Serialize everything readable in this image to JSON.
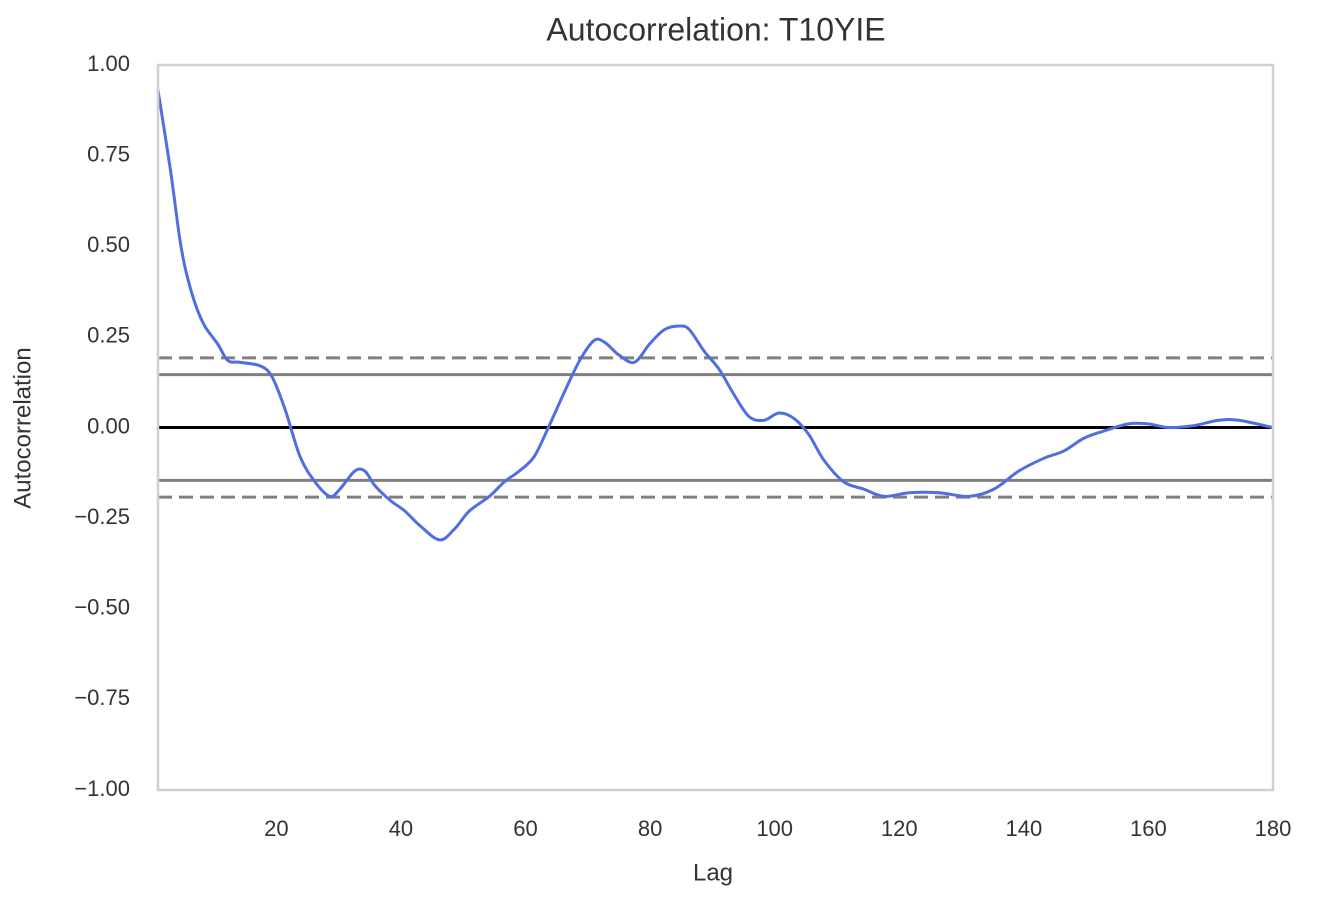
{
  "chart_data": {
    "type": "line",
    "title": "Autocorrelation: T10YIE",
    "x_label": "Lag",
    "y_label": "Autocorrelation",
    "xlim": [
      1,
      180
    ],
    "ylim": [
      -1.0,
      1.0
    ],
    "xticks": [
      20,
      40,
      60,
      80,
      100,
      120,
      140,
      160,
      180
    ],
    "yticks": [
      {
        "value": 1.0,
        "label": "1.00"
      },
      {
        "value": 0.75,
        "label": "0.75"
      },
      {
        "value": 0.5,
        "label": "0.50"
      },
      {
        "value": 0.25,
        "label": "0.25"
      },
      {
        "value": 0.0,
        "label": "0.00"
      },
      {
        "value": -0.25,
        "label": "−0.25"
      },
      {
        "value": -0.5,
        "label": "−0.50"
      },
      {
        "value": -0.75,
        "label": "−0.75"
      },
      {
        "value": -1.0,
        "label": "−1.00"
      }
    ],
    "grid": false,
    "reference_lines": [
      {
        "value": 0.192,
        "color": "#808080",
        "style": "dashed"
      },
      {
        "value": 0.146,
        "color": "#808080",
        "style": "solid"
      },
      {
        "value": 0.0,
        "color": "#000000",
        "style": "solid"
      },
      {
        "value": -0.146,
        "color": "#808080",
        "style": "solid"
      },
      {
        "value": -0.192,
        "color": "#808080",
        "style": "dashed"
      }
    ],
    "series": [
      {
        "color": "#4f6fe0",
        "x": [
          1,
          3,
          4.5,
          5.5,
          7,
          8.5,
          10.6,
          12.2,
          14.1,
          17.4,
          19.3,
          21.4,
          23.8,
          26.2,
          28.6,
          30.2,
          32.6,
          34.2,
          35.8,
          38.2,
          40.6,
          43,
          46.2,
          48.6,
          51,
          54.2,
          56.6,
          59,
          61.4,
          63.8,
          66.3,
          68.7,
          71,
          72.7,
          75,
          77.5,
          79.9,
          82.3,
          84.7,
          86.3,
          88.7,
          91.1,
          93.5,
          95.9,
          98.3,
          100.7,
          103.1,
          105.5,
          107.9,
          111.1,
          114.3,
          117.6,
          121.6,
          126.4,
          131.2,
          135.2,
          139.2,
          143.2,
          146.4,
          149.6,
          152.8,
          156.8,
          160,
          163.2,
          167.2,
          171.3,
          174.5,
          180
        ],
        "values": [
          0.93,
          0.71,
          0.52,
          0.43,
          0.34,
          0.28,
          0.23,
          0.185,
          0.18,
          0.17,
          0.14,
          0.05,
          -0.08,
          -0.15,
          -0.19,
          -0.17,
          -0.12,
          -0.12,
          -0.16,
          -0.2,
          -0.23,
          -0.27,
          -0.31,
          -0.28,
          -0.23,
          -0.19,
          -0.15,
          -0.12,
          -0.08,
          0.005,
          0.1,
          0.185,
          0.24,
          0.235,
          0.2,
          0.18,
          0.23,
          0.27,
          0.28,
          0.27,
          0.21,
          0.16,
          0.09,
          0.03,
          0.02,
          0.04,
          0.025,
          -0.02,
          -0.09,
          -0.15,
          -0.17,
          -0.19,
          -0.18,
          -0.18,
          -0.19,
          -0.17,
          -0.12,
          -0.085,
          -0.065,
          -0.03,
          -0.01,
          0.01,
          0.01,
          0.0,
          0.005,
          0.02,
          0.02,
          0.0
        ]
      }
    ]
  }
}
